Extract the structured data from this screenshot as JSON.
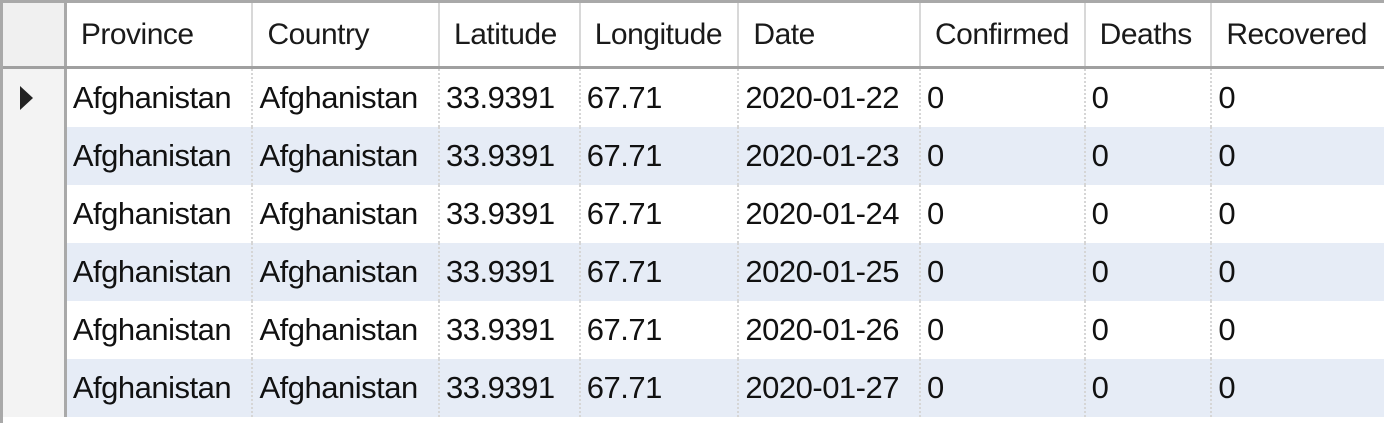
{
  "table": {
    "columns": [
      "Province",
      "Country",
      "Latitude",
      "Longitude",
      "Date",
      "Confirmed",
      "Deaths",
      "Recovered"
    ],
    "current_row_indicator": "row-pointer-icon",
    "rows": [
      [
        "Afghanistan",
        "Afghanistan",
        "33.9391",
        "67.71",
        "2020-01-22",
        "0",
        "0",
        "0"
      ],
      [
        "Afghanistan",
        "Afghanistan",
        "33.9391",
        "67.71",
        "2020-01-23",
        "0",
        "0",
        "0"
      ],
      [
        "Afghanistan",
        "Afghanistan",
        "33.9391",
        "67.71",
        "2020-01-24",
        "0",
        "0",
        "0"
      ],
      [
        "Afghanistan",
        "Afghanistan",
        "33.9391",
        "67.71",
        "2020-01-25",
        "0",
        "0",
        "0"
      ],
      [
        "Afghanistan",
        "Afghanistan",
        "33.9391",
        "67.71",
        "2020-01-26",
        "0",
        "0",
        "0"
      ],
      [
        "Afghanistan",
        "Afghanistan",
        "33.9391",
        "67.71",
        "2020-01-27",
        "0",
        "0",
        "0"
      ]
    ]
  },
  "colors": {
    "alt_row": "#e6ecf6",
    "grid_border": "#a9a9a9"
  }
}
